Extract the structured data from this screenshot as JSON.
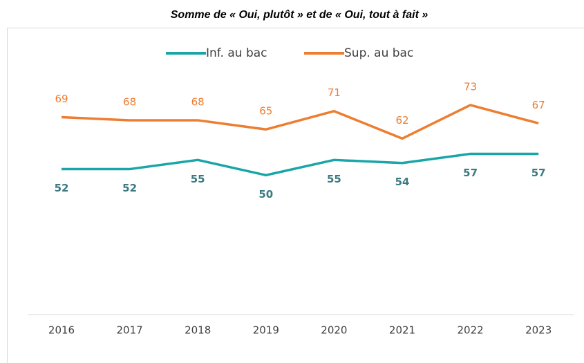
{
  "chart_data": {
    "type": "line",
    "title": "Somme de « Oui, plutôt » et de « Oui, tout à fait »",
    "categories": [
      "2016",
      "2017",
      "2018",
      "2019",
      "2020",
      "2021",
      "2022",
      "2023"
    ],
    "series": [
      {
        "name": "Inf. au bac",
        "color": "#1aa5a8",
        "label_color": "#3b7a80",
        "values": [
          52,
          52,
          55,
          50,
          55,
          54,
          57,
          57
        ]
      },
      {
        "name": "Sup. au bac",
        "color": "#ed7d31",
        "label_color": "#ed7d31",
        "values": [
          69,
          68,
          68,
          65,
          71,
          62,
          73,
          67
        ]
      }
    ],
    "ylim": [
      0,
      80
    ],
    "grid": false,
    "legend": "top"
  }
}
